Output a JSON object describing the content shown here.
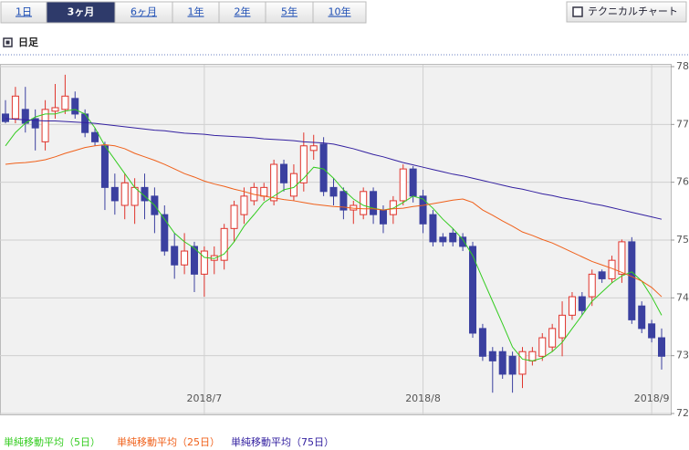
{
  "tabs": [
    "1日",
    "3ヶ月",
    "6ヶ月",
    "1年",
    "2年",
    "5年",
    "10年"
  ],
  "selected_tab": 1,
  "button": "テクニカルチャート",
  "section_title": "日足",
  "chart_data": {
    "type": "candlestick",
    "categories": [
      null,
      null,
      null,
      null,
      null,
      null,
      null,
      null,
      null,
      null,
      null,
      null,
      null,
      null,
      null,
      null,
      null,
      null,
      null,
      null,
      "2018/7",
      null,
      null,
      null,
      null,
      null,
      null,
      null,
      null,
      null,
      null,
      null,
      null,
      null,
      null,
      null,
      null,
      null,
      null,
      null,
      null,
      null,
      "2018/8",
      null,
      null,
      null,
      null,
      null,
      null,
      null,
      null,
      null,
      null,
      null,
      null,
      null,
      null,
      null,
      null,
      null,
      null,
      null,
      null,
      null,
      null,
      "2018/9",
      null
    ],
    "open": [
      77.18,
      77.1,
      77.26,
      77.1,
      76.7,
      77.23,
      77.26,
      77.45,
      77.18,
      76.86,
      76.63,
      75.91,
      75.6,
      75.6,
      75.91,
      75.76,
      75.44,
      74.89,
      74.57,
      74.89,
      74.41,
      74.65,
      74.65,
      75.2,
      75.44,
      75.68,
      75.76,
      75.68,
      76.31,
      75.76,
      75.99,
      76.55,
      76.66,
      75.91,
      75.84,
      75.52,
      75.44,
      75.84,
      75.52,
      75.44,
      75.68,
      76.23,
      75.76,
      75.44,
      75.05,
      75.12,
      75.05,
      74.89,
      73.47,
      73.07,
      73.07,
      72.99,
      72.68,
      72.91,
      72.99,
      73.15,
      73.31,
      73.7,
      74.02,
      74.02,
      74.45,
      74.33,
      74.41,
      74.97,
      73.86,
      73.55,
      73.31
    ],
    "high": [
      77.42,
      77.65,
      77.65,
      77.26,
      77.42,
      77.7,
      77.86,
      77.57,
      77.26,
      76.94,
      76.7,
      76.15,
      76.15,
      76.07,
      76.15,
      75.91,
      75.6,
      75.12,
      75.12,
      74.97,
      74.89,
      74.89,
      75.28,
      75.68,
      75.91,
      75.99,
      75.99,
      76.39,
      76.39,
      76.31,
      76.86,
      76.82,
      76.78,
      76.07,
      75.91,
      75.68,
      75.91,
      75.91,
      75.6,
      75.76,
      76.31,
      76.28,
      75.87,
      75.52,
      75.12,
      75.2,
      75.12,
      74.97,
      73.55,
      73.15,
      73.15,
      73.07,
      73.15,
      73.15,
      73.39,
      73.55,
      73.94,
      74.1,
      74.1,
      74.49,
      74.49,
      74.73,
      75.01,
      75.05,
      73.94,
      73.62,
      73.47
    ],
    "low": [
      77.02,
      77.02,
      76.86,
      76.55,
      76.55,
      77.1,
      77.18,
      77.1,
      76.78,
      76.63,
      75.52,
      75.44,
      75.36,
      75.28,
      75.36,
      75.12,
      74.73,
      74.33,
      74.41,
      74.1,
      74.02,
      74.41,
      74.49,
      74.97,
      75.28,
      75.6,
      75.68,
      75.6,
      75.84,
      75.68,
      75.84,
      76.39,
      75.76,
      75.6,
      75.36,
      75.28,
      75.36,
      75.28,
      75.12,
      75.28,
      75.6,
      75.65,
      75.12,
      74.89,
      74.89,
      74.89,
      74.81,
      73.31,
      72.91,
      72.36,
      72.6,
      72.36,
      72.44,
      72.83,
      72.91,
      73.07,
      72.99,
      73.62,
      73.7,
      73.86,
      74.26,
      74.26,
      74.26,
      73.55,
      73.39,
      73.23,
      72.76
    ],
    "close": [
      77.05,
      77.49,
      77.02,
      76.94,
      77.26,
      77.29,
      77.49,
      77.18,
      76.86,
      76.7,
      75.91,
      75.68,
      75.99,
      75.91,
      75.68,
      75.44,
      74.81,
      74.57,
      74.81,
      74.41,
      74.81,
      74.73,
      75.2,
      75.6,
      75.76,
      75.91,
      75.91,
      76.31,
      75.99,
      76.15,
      76.63,
      76.63,
      75.84,
      75.76,
      75.52,
      75.6,
      75.84,
      75.44,
      75.28,
      75.68,
      76.23,
      75.76,
      75.28,
      74.97,
      74.97,
      74.97,
      74.89,
      73.39,
      72.99,
      72.91,
      72.68,
      72.68,
      73.07,
      73.07,
      73.31,
      73.47,
      73.7,
      74.02,
      73.78,
      74.41,
      74.33,
      74.65,
      74.97,
      73.62,
      73.47,
      73.31,
      72.99
    ],
    "up_color": "#e0332b",
    "down_color": "#3b40a0",
    "series": [
      {
        "name": "単純移動平均（5日）",
        "color": "#33cc1f",
        "values": [
          76.63,
          76.86,
          77.02,
          77.13,
          77.18,
          77.18,
          77.23,
          77.26,
          77.18,
          76.94,
          76.63,
          76.39,
          76.15,
          75.91,
          75.76,
          75.6,
          75.36,
          75.12,
          74.97,
          74.86,
          74.7,
          74.68,
          74.76,
          74.97,
          75.24,
          75.44,
          75.65,
          75.76,
          75.87,
          75.91,
          76.07,
          76.26,
          76.23,
          76.07,
          75.87,
          75.71,
          75.6,
          75.55,
          75.52,
          75.55,
          75.65,
          75.76,
          75.71,
          75.55,
          75.36,
          75.2,
          75.01,
          74.73,
          74.33,
          73.94,
          73.55,
          73.15,
          72.94,
          72.91,
          72.96,
          73.07,
          73.23,
          73.47,
          73.7,
          73.94,
          74.1,
          74.26,
          74.38,
          74.45,
          74.29,
          74.02,
          73.7
        ]
      },
      {
        "name": "単純移動平均（25日）",
        "color": "#f0601a",
        "values": [
          76.31,
          76.33,
          76.34,
          76.36,
          76.39,
          76.44,
          76.5,
          76.55,
          76.6,
          76.63,
          76.65,
          76.63,
          76.58,
          76.5,
          76.44,
          76.38,
          76.31,
          76.23,
          76.15,
          76.09,
          76.02,
          75.97,
          75.93,
          75.88,
          75.84,
          75.79,
          75.76,
          75.73,
          75.7,
          75.68,
          75.65,
          75.62,
          75.6,
          75.58,
          75.57,
          75.55,
          75.54,
          75.54,
          75.52,
          75.54,
          75.55,
          75.58,
          75.6,
          75.63,
          75.66,
          75.69,
          75.71,
          75.65,
          75.52,
          75.43,
          75.33,
          75.24,
          75.14,
          75.08,
          75.01,
          74.95,
          74.87,
          74.79,
          74.71,
          74.63,
          74.57,
          74.51,
          74.44,
          74.37,
          74.29,
          74.18,
          74.02
        ]
      },
      {
        "name": "単純移動平均（75日）",
        "color": "#3320a0",
        "values": [
          77.1,
          77.09,
          77.08,
          77.07,
          77.06,
          77.06,
          77.05,
          77.04,
          77.03,
          77.02,
          77.0,
          76.98,
          76.96,
          76.94,
          76.92,
          76.9,
          76.89,
          76.87,
          76.85,
          76.84,
          76.83,
          76.81,
          76.8,
          76.79,
          76.78,
          76.77,
          76.75,
          76.74,
          76.73,
          76.72,
          76.7,
          76.69,
          76.68,
          76.66,
          76.62,
          76.58,
          76.53,
          76.48,
          76.44,
          76.39,
          76.34,
          76.3,
          76.26,
          76.22,
          76.18,
          76.14,
          76.11,
          76.07,
          76.03,
          75.99,
          75.95,
          75.91,
          75.88,
          75.84,
          75.8,
          75.77,
          75.73,
          75.7,
          75.67,
          75.63,
          75.6,
          75.56,
          75.52,
          75.48,
          75.44,
          75.4,
          75.36
        ]
      }
    ],
    "ylim": [
      72,
      78
    ],
    "yticks": [
      72,
      73,
      74,
      75,
      76,
      77,
      78
    ],
    "grid": true
  }
}
